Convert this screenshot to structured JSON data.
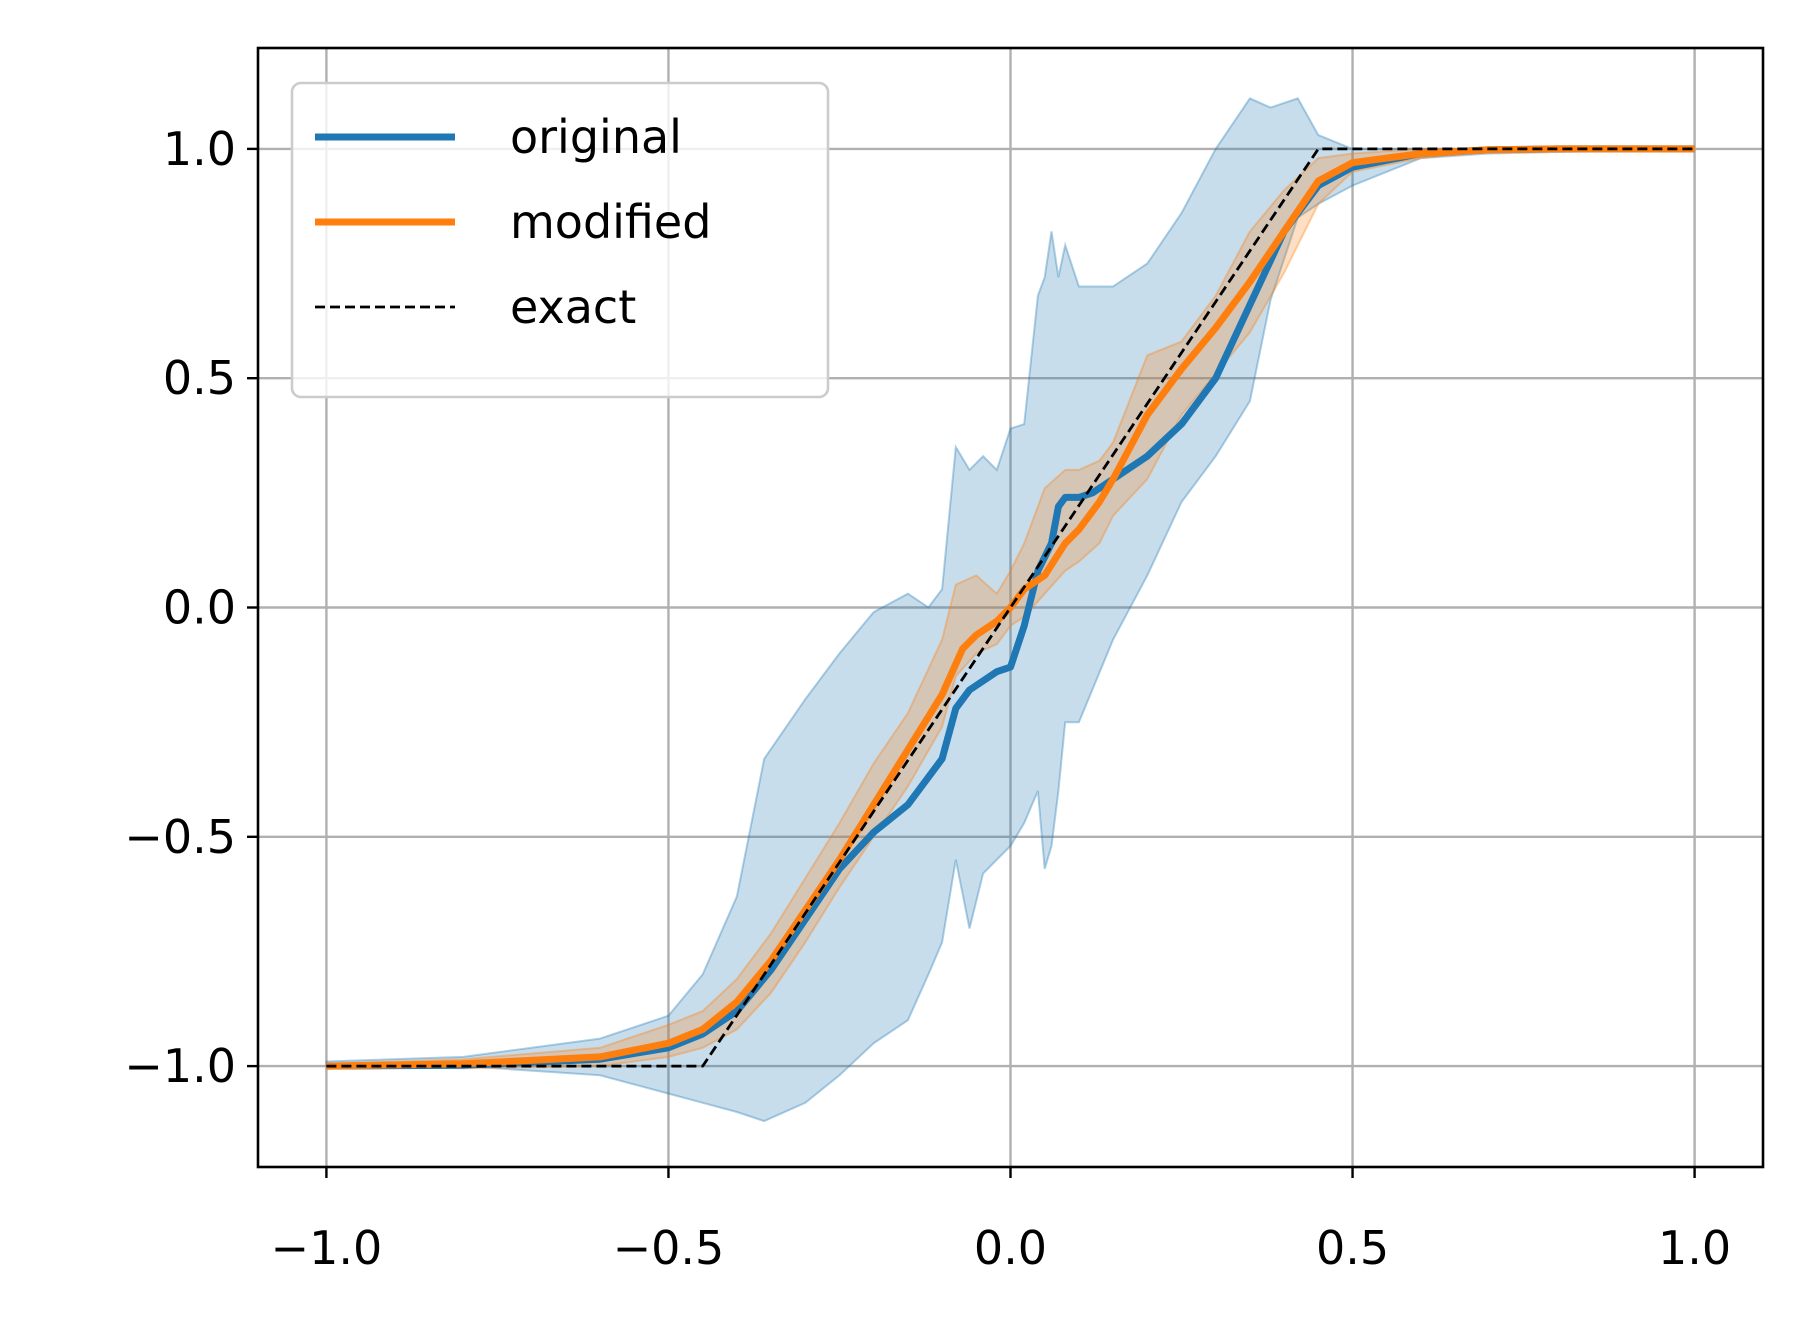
{
  "chart_data": {
    "type": "line",
    "title": "",
    "xlabel": "",
    "ylabel": "",
    "xlim": [
      -1.1,
      1.1
    ],
    "ylim": [
      -1.22,
      1.22
    ],
    "grid": true,
    "legend_position": "top-left",
    "x_ticks": [
      {
        "value": -1.0,
        "label": "−1.0"
      },
      {
        "value": -0.5,
        "label": "−0.5"
      },
      {
        "value": 0.0,
        "label": "0.0"
      },
      {
        "value": 0.5,
        "label": "0.5"
      },
      {
        "value": 1.0,
        "label": "1.0"
      }
    ],
    "y_ticks": [
      {
        "value": -1.0,
        "label": "−1.0"
      },
      {
        "value": -0.5,
        "label": "−0.5"
      },
      {
        "value": 0.0,
        "label": "0.0"
      },
      {
        "value": 0.5,
        "label": "0.5"
      },
      {
        "value": 1.0,
        "label": "1.0"
      }
    ],
    "series": [
      {
        "name": "original",
        "color": "#1f77b4",
        "style": "solid",
        "x": [
          -1.0,
          -0.8,
          -0.6,
          -0.5,
          -0.45,
          -0.4,
          -0.35,
          -0.3,
          -0.25,
          -0.2,
          -0.15,
          -0.1,
          -0.08,
          -0.06,
          -0.04,
          -0.02,
          0.0,
          0.02,
          0.04,
          0.06,
          0.07,
          0.08,
          0.1,
          0.12,
          0.15,
          0.2,
          0.25,
          0.3,
          0.35,
          0.4,
          0.45,
          0.5,
          0.6,
          0.7,
          0.8,
          1.0
        ],
        "y": [
          -1.0,
          -0.998,
          -0.985,
          -0.96,
          -0.93,
          -0.88,
          -0.79,
          -0.68,
          -0.57,
          -0.49,
          -0.43,
          -0.33,
          -0.22,
          -0.18,
          -0.16,
          -0.14,
          -0.13,
          -0.04,
          0.08,
          0.14,
          0.22,
          0.24,
          0.24,
          0.25,
          0.28,
          0.33,
          0.4,
          0.5,
          0.66,
          0.82,
          0.92,
          0.96,
          0.99,
          0.998,
          1.0,
          1.0
        ]
      },
      {
        "name": "modified",
        "color": "#ff7f0e",
        "style": "solid",
        "x": [
          -1.0,
          -0.8,
          -0.6,
          -0.5,
          -0.45,
          -0.4,
          -0.35,
          -0.3,
          -0.25,
          -0.2,
          -0.15,
          -0.1,
          -0.07,
          -0.05,
          -0.02,
          0.0,
          0.02,
          0.05,
          0.08,
          0.1,
          0.13,
          0.15,
          0.2,
          0.25,
          0.3,
          0.35,
          0.4,
          0.45,
          0.5,
          0.6,
          0.7,
          0.8,
          1.0
        ],
        "y": [
          -1.0,
          -0.995,
          -0.98,
          -0.95,
          -0.92,
          -0.86,
          -0.77,
          -0.66,
          -0.55,
          -0.43,
          -0.31,
          -0.19,
          -0.09,
          -0.06,
          -0.03,
          0.0,
          0.04,
          0.07,
          0.14,
          0.17,
          0.23,
          0.28,
          0.42,
          0.52,
          0.61,
          0.71,
          0.82,
          0.93,
          0.97,
          0.99,
          0.998,
          1.0,
          1.0
        ]
      },
      {
        "name": "exact",
        "color": "#000000",
        "style": "dashed",
        "x": [
          -1.0,
          -0.45,
          0.45,
          1.0
        ],
        "y": [
          -1.0,
          -1.0,
          1.0,
          1.0
        ]
      }
    ],
    "bands": [
      {
        "series": "original",
        "color": "#1f77b4",
        "opacity": 0.25,
        "x": [
          -1.0,
          -0.8,
          -0.6,
          -0.5,
          -0.45,
          -0.4,
          -0.36,
          -0.3,
          -0.25,
          -0.2,
          -0.15,
          -0.12,
          -0.1,
          -0.08,
          -0.06,
          -0.04,
          -0.02,
          0.0,
          0.02,
          0.04,
          0.05,
          0.06,
          0.07,
          0.08,
          0.1,
          0.15,
          0.2,
          0.25,
          0.3,
          0.35,
          0.38,
          0.42,
          0.45,
          0.5,
          0.6,
          0.7,
          1.0
        ],
        "upper": [
          -0.99,
          -0.98,
          -0.94,
          -0.89,
          -0.8,
          -0.63,
          -0.33,
          -0.2,
          -0.1,
          -0.01,
          0.03,
          0.0,
          0.04,
          0.35,
          0.3,
          0.33,
          0.3,
          0.39,
          0.4,
          0.68,
          0.72,
          0.82,
          0.72,
          0.79,
          0.7,
          0.7,
          0.75,
          0.86,
          1.0,
          1.11,
          1.09,
          1.11,
          1.03,
          1.0,
          1.0,
          1.0,
          1.0
        ],
        "lower": [
          -1.0,
          -1.0,
          -1.02,
          -1.06,
          -1.08,
          -1.1,
          -1.12,
          -1.08,
          -1.02,
          -0.95,
          -0.9,
          -0.8,
          -0.73,
          -0.55,
          -0.7,
          -0.58,
          -0.55,
          -0.52,
          -0.47,
          -0.4,
          -0.57,
          -0.52,
          -0.4,
          -0.25,
          -0.25,
          -0.07,
          0.07,
          0.23,
          0.33,
          0.45,
          0.67,
          0.85,
          0.88,
          0.92,
          0.98,
          0.99,
          1.0
        ]
      },
      {
        "series": "modified",
        "color": "#ff7f0e",
        "opacity": 0.25,
        "x": [
          -1.0,
          -0.8,
          -0.6,
          -0.5,
          -0.45,
          -0.4,
          -0.35,
          -0.3,
          -0.25,
          -0.2,
          -0.15,
          -0.1,
          -0.08,
          -0.05,
          -0.02,
          0.0,
          0.02,
          0.05,
          0.08,
          0.1,
          0.13,
          0.15,
          0.2,
          0.25,
          0.3,
          0.35,
          0.4,
          0.45,
          0.5,
          0.6,
          0.7,
          1.0
        ],
        "upper": [
          -0.995,
          -0.985,
          -0.96,
          -0.91,
          -0.88,
          -0.81,
          -0.71,
          -0.59,
          -0.47,
          -0.34,
          -0.23,
          -0.07,
          0.05,
          0.07,
          0.03,
          0.08,
          0.14,
          0.26,
          0.3,
          0.3,
          0.32,
          0.36,
          0.55,
          0.58,
          0.68,
          0.82,
          0.91,
          0.98,
          0.99,
          1.0,
          1.0,
          1.0
        ],
        "lower": [
          -1.0,
          -1.005,
          -1.0,
          -0.98,
          -0.96,
          -0.92,
          -0.84,
          -0.73,
          -0.61,
          -0.5,
          -0.39,
          -0.26,
          -0.15,
          -0.1,
          -0.08,
          -0.04,
          -0.02,
          0.03,
          0.08,
          0.1,
          0.14,
          0.2,
          0.28,
          0.42,
          0.51,
          0.6,
          0.73,
          0.88,
          0.95,
          0.98,
          0.995,
          1.0
        ]
      }
    ]
  }
}
